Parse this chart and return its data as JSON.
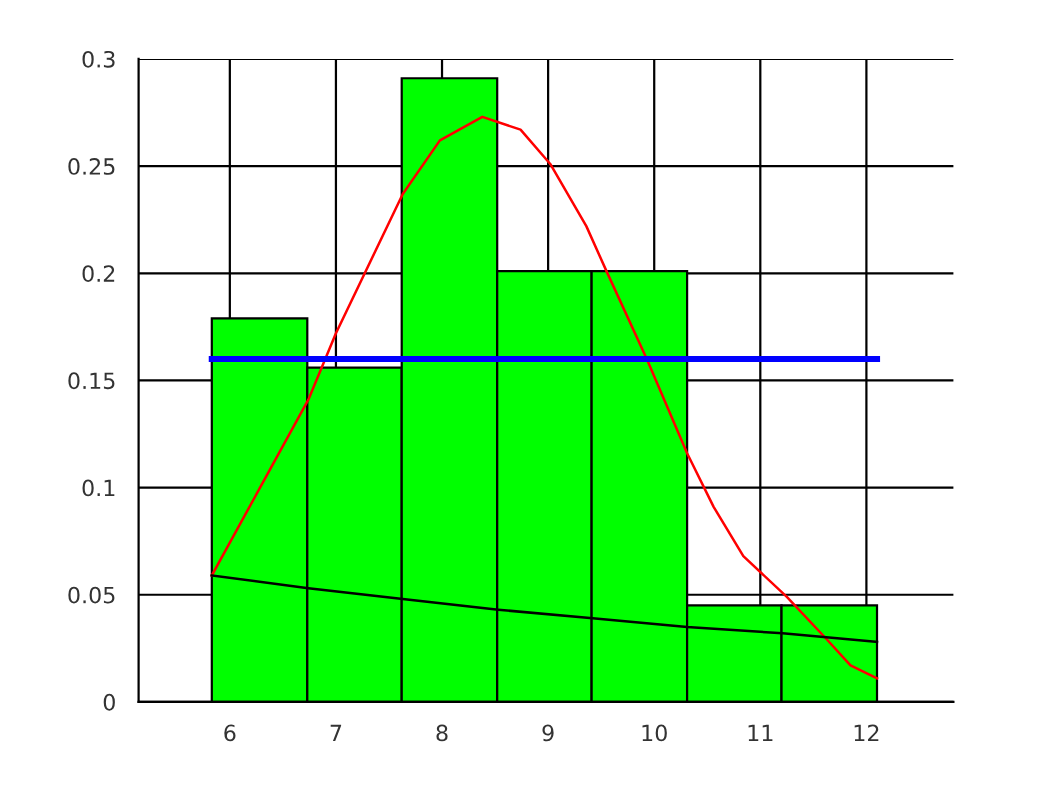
{
  "chart_data": {
    "type": "histogram",
    "bins": [
      5.83,
      6.73,
      7.62,
      8.52,
      9.41,
      10.31,
      11.2,
      12.1
    ],
    "values": [
      0.179,
      0.156,
      0.291,
      0.201,
      0.201,
      0.045,
      0.045
    ],
    "color": "#00ff00",
    "series": [
      {
        "type": "line",
        "color": "#ff0000",
        "x": [
          5.83,
          6.74,
          7.0,
          7.63,
          7.98,
          8.38,
          8.74,
          9.02,
          9.36,
          9.55,
          9.93,
          10.31,
          10.56,
          10.84,
          11.25,
          11.63,
          11.85,
          12.1
        ],
        "values": [
          0.059,
          0.141,
          0.172,
          0.237,
          0.262,
          0.273,
          0.267,
          0.251,
          0.222,
          0.201,
          0.16,
          0.116,
          0.091,
          0.068,
          0.049,
          0.029,
          0.017,
          0.011
        ]
      },
      {
        "type": "line",
        "color": "#0000ff",
        "x": [
          5.83,
          12.1
        ],
        "values": [
          0.16,
          0.16
        ]
      },
      {
        "type": "line",
        "color": "#000000",
        "x": [
          5.83,
          6.74,
          7.63,
          8.53,
          9.42,
          10.31,
          11.21,
          12.1
        ],
        "values": [
          0.059,
          0.053,
          0.048,
          0.043,
          0.039,
          0.035,
          0.032,
          0.028
        ]
      }
    ],
    "xlim": [
      5.14,
      12.82
    ],
    "xticks": [
      6,
      7,
      8,
      9,
      10,
      11,
      12
    ],
    "ylim": [
      0,
      0.3
    ],
    "yticks": [
      0,
      0.05,
      0.1,
      0.15,
      0.2,
      0.25,
      0.3
    ],
    "grid": true
  }
}
